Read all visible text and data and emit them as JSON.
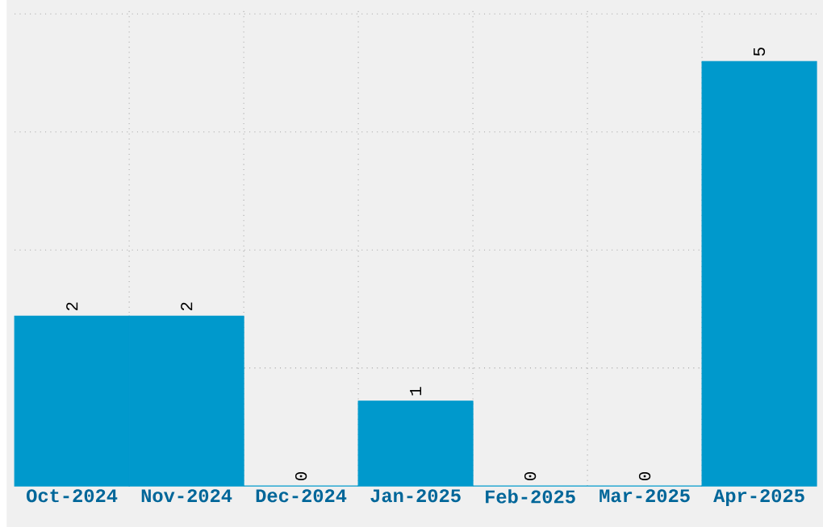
{
  "chart_data": {
    "type": "bar",
    "categories": [
      "Oct-2024",
      "Nov-2024",
      "Dec-2024",
      "Jan-2025",
      "Feb-2025",
      "Mar-2025",
      "Apr-2025"
    ],
    "values": [
      2,
      2,
      0,
      1,
      0,
      0,
      5
    ],
    "color": "#0099cc",
    "data_labels": true,
    "grid": true,
    "tick_labels": "x",
    "ylim": [
      0,
      5.63
    ],
    "yticks": [
      {
        "value": 1.39,
        "label": null
      },
      {
        "value": 2.78,
        "label": null
      },
      {
        "value": 4.17,
        "label": null
      },
      {
        "value": 5.56,
        "label": null
      }
    ]
  }
}
